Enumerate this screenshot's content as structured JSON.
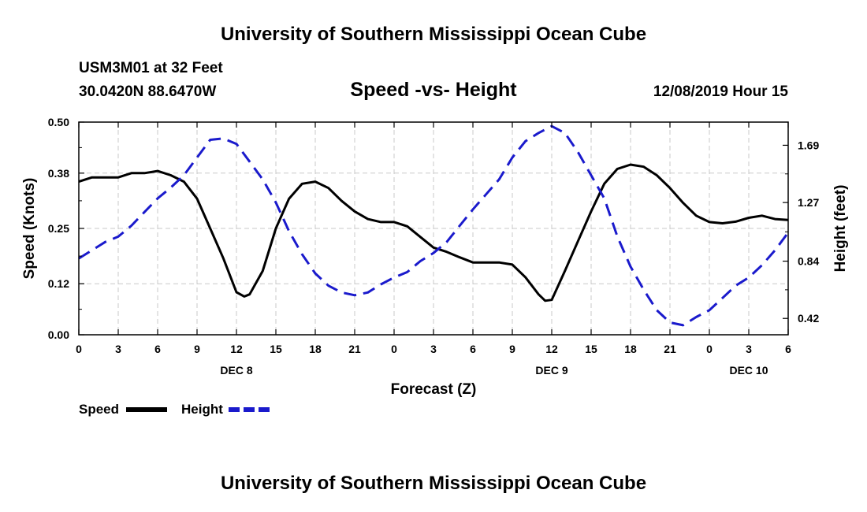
{
  "header": {
    "title": "University of Southern Mississippi Ocean Cube",
    "station": "USM3M01 at 32 Feet",
    "coords": "30.0420N 88.6470W",
    "subtitle": "Speed -vs- Height",
    "datestamp": "12/08/2019 Hour 15"
  },
  "footer": {
    "title": "University of Southern Mississippi Ocean Cube"
  },
  "chart_data": {
    "type": "line",
    "xlabel": "Forecast (Z)",
    "ylabel": "Speed (Knots)",
    "y2label": "Height (feet)",
    "x_range": [
      0,
      54
    ],
    "ylim": [
      0,
      0.5
    ],
    "y2lim": [
      0.3,
      1.86
    ],
    "x_ticks": [
      0,
      3,
      6,
      9,
      12,
      15,
      18,
      21,
      24,
      27,
      30,
      33,
      36,
      39,
      42,
      45,
      48,
      51,
      54
    ],
    "x_tick_labels": [
      "0",
      "3",
      "6",
      "9",
      "12",
      "15",
      "18",
      "21",
      "0",
      "3",
      "6",
      "9",
      "12",
      "15",
      "18",
      "21",
      "0",
      "3",
      "6"
    ],
    "date_labels": [
      {
        "x": 12,
        "text": "DEC 8"
      },
      {
        "x": 36,
        "text": "DEC 9"
      },
      {
        "x": 51,
        "text": "DEC 10"
      }
    ],
    "y_ticks": [
      0.0,
      0.12,
      0.25,
      0.38,
      0.5
    ],
    "y_tick_labels": [
      "0.00",
      "0.12",
      "0.25",
      "0.38",
      "0.50"
    ],
    "y2_ticks": [
      0.42,
      0.84,
      1.27,
      1.69
    ],
    "y2_tick_labels": [
      "0.42",
      "0.84",
      "1.27",
      "1.69"
    ],
    "grid": true,
    "legend": [
      {
        "name": "Speed",
        "color": "#000000",
        "dash": "solid"
      },
      {
        "name": "Height",
        "color": "#1a1acc",
        "dash": "dashed"
      }
    ],
    "series": [
      {
        "name": "Speed",
        "axis": "left",
        "color": "#000000",
        "x": [
          0,
          1,
          2,
          3,
          4,
          5,
          6,
          7,
          8,
          9,
          10,
          11,
          12,
          12.6,
          13,
          14,
          15,
          16,
          17,
          18,
          19,
          20,
          21,
          22,
          23,
          24,
          25,
          26,
          27,
          28,
          29,
          30,
          31,
          32,
          33,
          34,
          35,
          35.5,
          36,
          37,
          38,
          39,
          40,
          41,
          42,
          43,
          44,
          45,
          46,
          47,
          48,
          49,
          50,
          51,
          52,
          53,
          54
        ],
        "values": [
          0.36,
          0.37,
          0.37,
          0.37,
          0.38,
          0.38,
          0.385,
          0.375,
          0.36,
          0.32,
          0.25,
          0.18,
          0.1,
          0.09,
          0.095,
          0.15,
          0.25,
          0.32,
          0.355,
          0.36,
          0.345,
          0.315,
          0.29,
          0.272,
          0.265,
          0.265,
          0.255,
          0.23,
          0.205,
          0.195,
          0.182,
          0.17,
          0.17,
          0.17,
          0.165,
          0.135,
          0.095,
          0.08,
          0.082,
          0.15,
          0.22,
          0.29,
          0.355,
          0.39,
          0.4,
          0.395,
          0.375,
          0.345,
          0.31,
          0.28,
          0.265,
          0.262,
          0.266,
          0.275,
          0.28,
          0.272,
          0.27
        ]
      },
      {
        "name": "Height",
        "axis": "right",
        "color": "#1a1acc",
        "x": [
          0,
          1,
          2,
          3,
          4,
          5,
          6,
          7,
          8,
          9,
          10,
          11,
          12,
          13,
          14,
          15,
          16,
          17,
          18,
          19,
          20,
          21,
          22,
          23,
          24,
          25,
          26,
          27,
          28,
          29,
          30,
          31,
          32,
          33,
          34,
          35,
          36,
          37,
          38,
          39,
          40,
          41,
          42,
          43,
          44,
          45,
          46,
          47,
          48,
          49,
          50,
          51,
          52,
          53,
          54
        ],
        "values": [
          0.86,
          0.92,
          0.98,
          1.02,
          1.1,
          1.2,
          1.3,
          1.38,
          1.47,
          1.6,
          1.73,
          1.74,
          1.7,
          1.57,
          1.44,
          1.27,
          1.06,
          0.89,
          0.75,
          0.66,
          0.61,
          0.59,
          0.61,
          0.67,
          0.72,
          0.76,
          0.84,
          0.9,
          0.98,
          1.1,
          1.22,
          1.33,
          1.44,
          1.6,
          1.72,
          1.78,
          1.83,
          1.78,
          1.64,
          1.47,
          1.3,
          1.02,
          0.8,
          0.63,
          0.48,
          0.39,
          0.37,
          0.43,
          0.48,
          0.57,
          0.66,
          0.72,
          0.81,
          0.92,
          1.05
        ]
      }
    ]
  }
}
